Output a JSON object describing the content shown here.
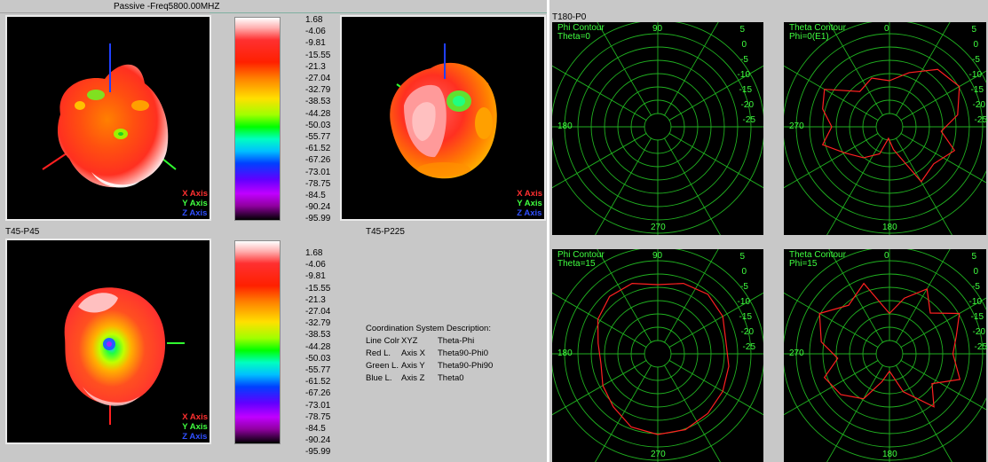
{
  "left_window": {
    "title": "Passive -Freq5800.00MHZ",
    "views": {
      "top_left_label": "",
      "top_right_label": "",
      "bottom_left_label": "T45-P45",
      "middle_label": "T45-P225"
    },
    "axis_legend": {
      "x": "X Axis",
      "y": "Y Axis",
      "z": "Z Axis"
    },
    "colorbar_values": [
      "1.68",
      "-4.06",
      "-9.81",
      "-15.55",
      "-21.3",
      "-27.04",
      "-32.79",
      "-38.53",
      "-44.28",
      "-50.03",
      "-55.77",
      "-61.52",
      "-67.26",
      "-73.01",
      "-78.75",
      "-84.5",
      "-90.24",
      "-95.99"
    ],
    "coordination": {
      "heading": "Coordination System Description:",
      "rows": [
        [
          "Line Colr",
          "XYZ",
          "Theta-Phi"
        ],
        [
          "Red L.",
          "Axis X",
          "Theta90-Phi0"
        ],
        [
          "Green L.",
          "Axis Y",
          "Theta90-Phi90"
        ],
        [
          "Blue L.",
          "Axis Z",
          "Theta0"
        ]
      ]
    },
    "colors": {
      "x_axis": "#ff3030",
      "y_axis": "#40ff40",
      "z_axis": "#3050ff",
      "panel_bg": "#c8c8c8"
    }
  },
  "right_window": {
    "view_label": "T180-P0",
    "plots": [
      {
        "title1": "Phi Contour",
        "title2": "Theta=0",
        "top": "90",
        "left": "180",
        "bottom": "270"
      },
      {
        "title1": "Theta Contour",
        "title2": "Phi=0(E1)",
        "top": "0",
        "left": "270",
        "bottom": "180"
      },
      {
        "title1": "Phi Contour",
        "title2": "Theta=15",
        "top": "90",
        "left": "180",
        "bottom": "270"
      },
      {
        "title1": "Theta Contour",
        "title2": "Phi=15",
        "top": "0",
        "left": "270",
        "bottom": "180"
      }
    ],
    "radial_labels": [
      "5",
      "0",
      "-5",
      "-10",
      "-15",
      "-20",
      "-25"
    ],
    "colors": {
      "grid": "#20b020",
      "trace": "#ff2020"
    }
  }
}
